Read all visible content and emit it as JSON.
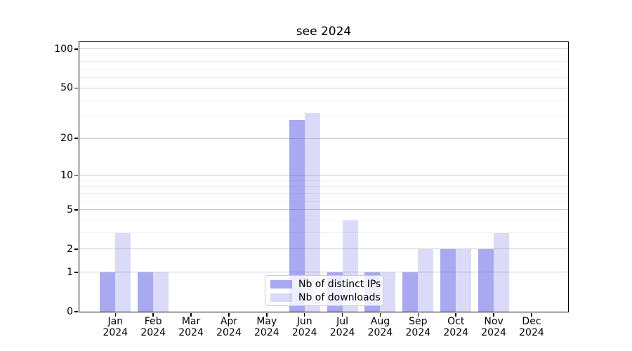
{
  "chart_data": {
    "type": "bar",
    "title": "see 2024",
    "categories": [
      "Jan 2024",
      "Feb 2024",
      "Mar 2024",
      "Apr 2024",
      "May 2024",
      "Jun 2024",
      "Jul 2024",
      "Aug 2024",
      "Sep 2024",
      "Oct 2024",
      "Nov 2024",
      "Dec 2024"
    ],
    "series": [
      {
        "name": "Nb of distinct IPs",
        "color": "rgba(102,102,230,0.56)",
        "values": [
          1,
          1,
          0,
          0,
          0,
          28,
          1,
          1,
          1,
          2,
          2,
          0
        ]
      },
      {
        "name": "Nb of downloads",
        "color": "rgba(102,102,230,0.235)",
        "values": [
          3,
          1,
          0,
          0,
          0,
          32,
          4,
          1,
          2,
          2,
          3,
          0
        ]
      }
    ],
    "yscale": "log1p (symlog-like)",
    "ylim": [
      0,
      113.2
    ],
    "yticks": [
      0,
      1,
      2,
      5,
      10,
      20,
      50,
      100
    ],
    "yticks_minor": [
      3,
      4,
      6,
      7,
      8,
      9,
      30,
      40,
      60,
      70,
      80,
      90
    ],
    "xlabel": "",
    "ylabel": "",
    "grid": "both (horizontal major + minor)",
    "legend_position": "lower center"
  },
  "colors": {
    "spine": "#000000",
    "grid_major": "#cbcbcb",
    "grid_minor": "#f0f0f0",
    "text": "#000000",
    "legend_border": "#cccccc",
    "legend_background": "rgba(255,255,255,0.8)"
  }
}
